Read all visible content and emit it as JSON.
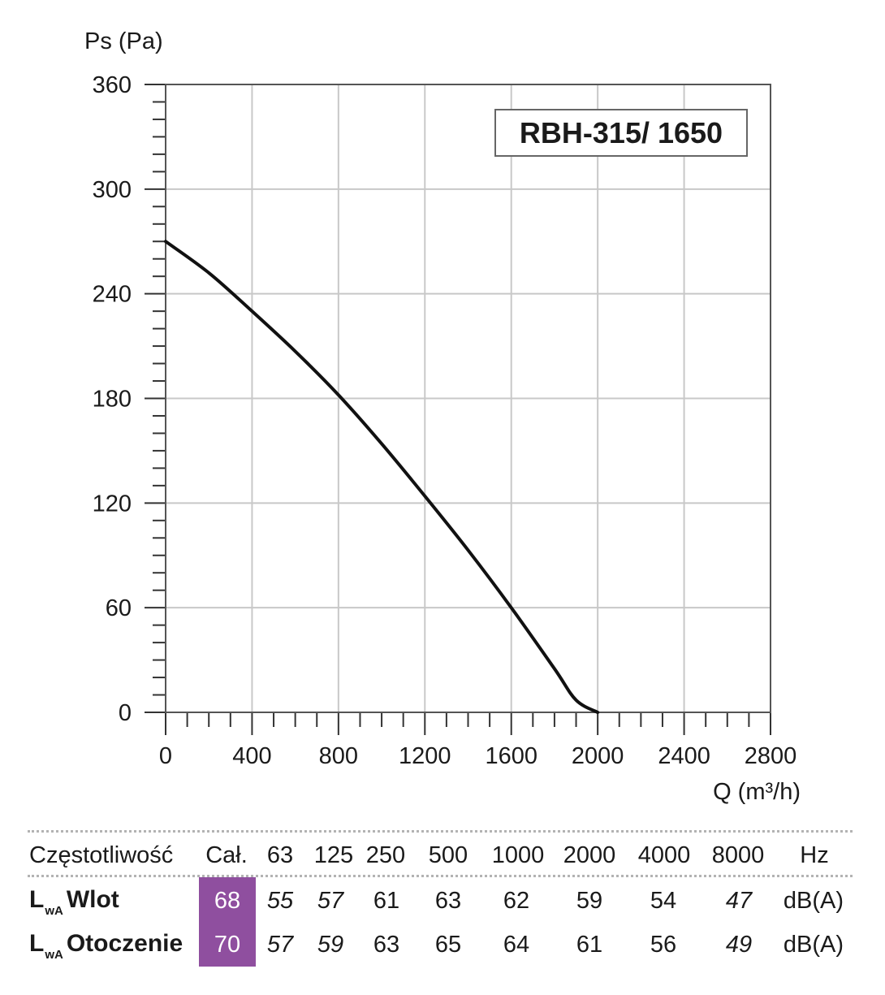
{
  "chart_data": {
    "type": "line",
    "title": "RBH-315/ 1650",
    "xlabel": "Q (m³/h)",
    "ylabel": "Ps (Pa)",
    "xlim": [
      0,
      2800
    ],
    "ylim": [
      0,
      360
    ],
    "xticks": [
      "0",
      "400",
      "800",
      "1200",
      "1600",
      "2000",
      "2400",
      "2800"
    ],
    "yticks": [
      "0",
      "60",
      "120",
      "180",
      "240",
      "300",
      "360"
    ],
    "grid": true,
    "series": [
      {
        "x": [
          0,
          200,
          400,
          600,
          800,
          1000,
          1200,
          1400,
          1600,
          1800,
          1900,
          2000
        ],
        "y": [
          270,
          252,
          230,
          207,
          182,
          154,
          124,
          93,
          60,
          25,
          7,
          0
        ]
      }
    ]
  },
  "table": {
    "header_label": "Częstotliwość",
    "total_label": "Cał.",
    "frequencies": [
      "63",
      "125",
      "250",
      "500",
      "1000",
      "2000",
      "4000",
      "8000"
    ],
    "unit_label": "Hz",
    "rows": [
      {
        "label_main": "L",
        "label_sub": "wA",
        "label_name": "Wlot",
        "total": "68",
        "values": [
          "55",
          "57",
          "61",
          "63",
          "62",
          "59",
          "54",
          "47"
        ],
        "unit": "dB(A)"
      },
      {
        "label_main": "L",
        "label_sub": "wA",
        "label_name": "Otoczenie",
        "total": "70",
        "values": [
          "57",
          "59",
          "63",
          "65",
          "64",
          "61",
          "56",
          "49"
        ],
        "unit": "dB(A)"
      }
    ],
    "total_highlight_color": "#8f4f9f"
  }
}
